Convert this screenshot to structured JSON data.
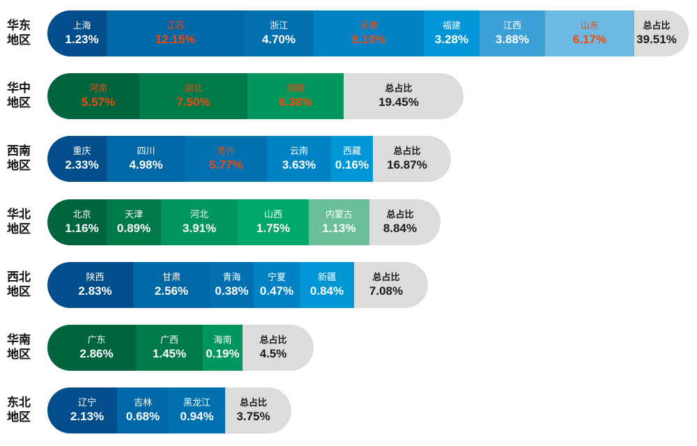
{
  "chart_data": {
    "type": "bar",
    "title": "",
    "total_label": "总占比",
    "colors": {
      "highlight_text": "#f04a10",
      "total_bg": "#dcdcdc",
      "blue": [
        "#024e8c",
        "#0068a6",
        "#0070b0",
        "#0083c6",
        "#0095d4",
        "#3aa0d6",
        "#6bbae2"
      ],
      "green": [
        "#00643f",
        "#007a48",
        "#00965e",
        "#00a86a",
        "#6abf98"
      ]
    },
    "regions": [
      {
        "name": "华东地区",
        "palette": "blue",
        "total": "39.51%",
        "provinces": [
          {
            "name": "上海",
            "value": "1.23%",
            "highlight": false
          },
          {
            "name": "江苏",
            "value": "12.15%",
            "highlight": true
          },
          {
            "name": "浙江",
            "value": "4.70%",
            "highlight": false
          },
          {
            "name": "安徽",
            "value": "8.10%",
            "highlight": true
          },
          {
            "name": "福建",
            "value": "3.28%",
            "highlight": false
          },
          {
            "name": "江西",
            "value": "3.88%",
            "highlight": false
          },
          {
            "name": "山东",
            "value": "6.17%",
            "highlight": true
          }
        ]
      },
      {
        "name": "华中地区",
        "palette": "green",
        "total": "19.45%",
        "provinces": [
          {
            "name": "河南",
            "value": "5.57%",
            "highlight": true
          },
          {
            "name": "湖北",
            "value": "7.50%",
            "highlight": true
          },
          {
            "name": "湖南",
            "value": "6.38%",
            "highlight": true
          }
        ]
      },
      {
        "name": "西南地区",
        "palette": "blue",
        "total": "16.87%",
        "provinces": [
          {
            "name": "重庆",
            "value": "2.33%",
            "highlight": false
          },
          {
            "name": "四川",
            "value": "4.98%",
            "highlight": false
          },
          {
            "name": "贵州",
            "value": "5.77%",
            "highlight": true
          },
          {
            "name": "云南",
            "value": "3.63%",
            "highlight": false
          },
          {
            "name": "西藏",
            "value": "0.16%",
            "highlight": false
          }
        ]
      },
      {
        "name": "华北地区",
        "palette": "green",
        "total": "8.84%",
        "provinces": [
          {
            "name": "北京",
            "value": "1.16%",
            "highlight": false
          },
          {
            "name": "天津",
            "value": "0.89%",
            "highlight": false
          },
          {
            "name": "河北",
            "value": "3.91%",
            "highlight": false
          },
          {
            "name": "山西",
            "value": "1.75%",
            "highlight": false
          },
          {
            "name": "内蒙古",
            "value": "1.13%",
            "highlight": false
          }
        ]
      },
      {
        "name": "西北地区",
        "palette": "blue",
        "total": "7.08%",
        "provinces": [
          {
            "name": "陕西",
            "value": "2.83%",
            "highlight": false
          },
          {
            "name": "甘肃",
            "value": "2.56%",
            "highlight": false
          },
          {
            "name": "青海",
            "value": "0.38%",
            "highlight": false
          },
          {
            "name": "宁夏",
            "value": "0.47%",
            "highlight": false
          },
          {
            "name": "新疆",
            "value": "0.84%",
            "highlight": false
          }
        ]
      },
      {
        "name": "华南地区",
        "palette": "green",
        "total": "4.5%",
        "provinces": [
          {
            "name": "广东",
            "value": "2.86%",
            "highlight": false
          },
          {
            "name": "广西",
            "value": "1.45%",
            "highlight": false
          },
          {
            "name": "海南",
            "value": "0.19%",
            "highlight": false
          }
        ]
      },
      {
        "name": "东北地区",
        "palette": "blue",
        "total": "3.75%",
        "provinces": [
          {
            "name": "辽宁",
            "value": "2.13%",
            "highlight": false
          },
          {
            "name": "吉林",
            "value": "0.68%",
            "highlight": false
          },
          {
            "name": "黑龙江",
            "value": "0.94%",
            "highlight": false
          }
        ]
      }
    ]
  }
}
